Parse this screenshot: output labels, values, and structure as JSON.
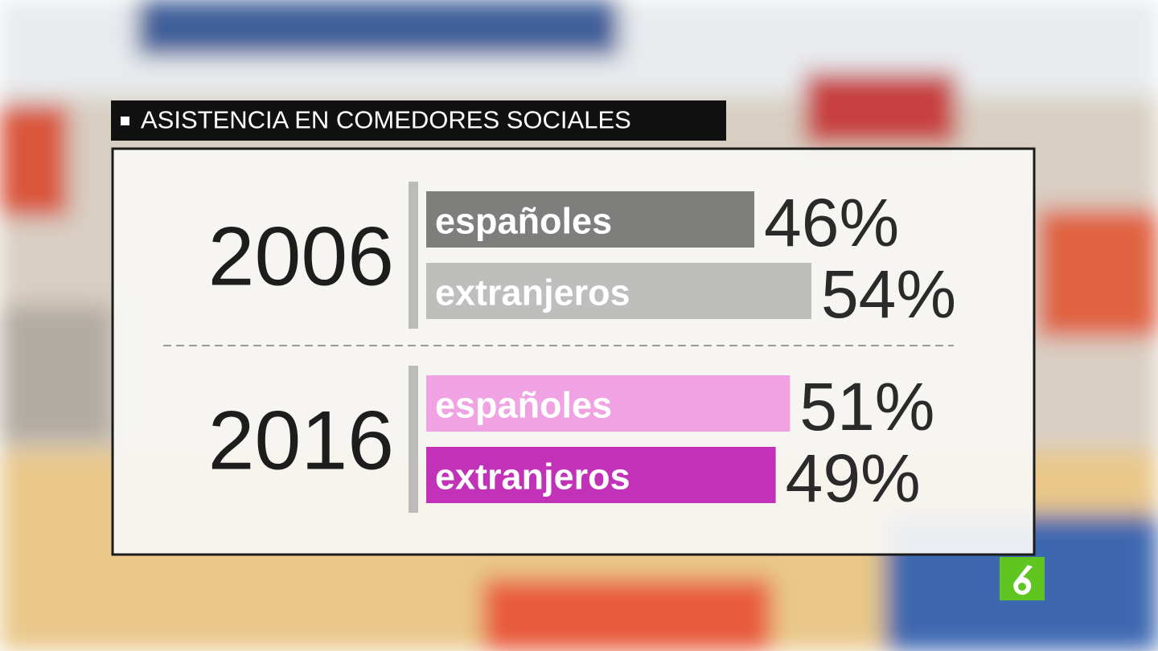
{
  "chart_data": {
    "type": "bar",
    "title": "ASISTENCIA EN COMEDORES SOCIALES",
    "groups": [
      {
        "label": "2006",
        "categories": [
          "españoles",
          "extranjeros"
        ],
        "values": [
          46,
          54
        ],
        "value_labels": [
          "46%",
          "54%"
        ],
        "colors": [
          "#7e7e7c",
          "#bebebc"
        ]
      },
      {
        "label": "2016",
        "categories": [
          "españoles",
          "extranjeros"
        ],
        "values": [
          51,
          49
        ],
        "value_labels": [
          "51%",
          "49%"
        ],
        "colors": [
          "#f0a2e2",
          "#c232b8"
        ]
      }
    ]
  }
}
